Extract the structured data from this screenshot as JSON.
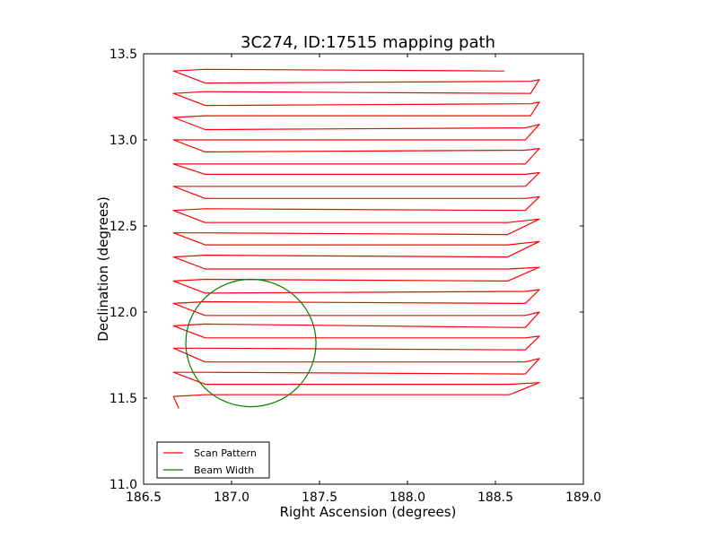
{
  "chart_data": {
    "type": "line",
    "title": "3C274, ID:17515 mapping path",
    "xlabel": "Right Ascension (degrees)",
    "ylabel": "Declination (degrees)",
    "xlim": [
      186.5,
      189.0
    ],
    "ylim": [
      11.0,
      13.5
    ],
    "xticks": [
      "186.5",
      "187.0",
      "187.5",
      "188.0",
      "188.5",
      "189.0"
    ],
    "yticks": [
      "11.0",
      "11.5",
      "12.0",
      "12.5",
      "13.0",
      "13.5"
    ],
    "grid": false,
    "legend_position": "lower-left",
    "colors": {
      "scan": "#ff0000",
      "beam": "#008000"
    },
    "series": [
      {
        "name": "Scan Pattern",
        "x": [
          188.55,
          186.85,
          186.67,
          186.85,
          188.7,
          188.75,
          188.7,
          186.85,
          186.67,
          186.85,
          188.7,
          188.75,
          188.7,
          186.85,
          186.67,
          186.85,
          188.67,
          188.75,
          188.67,
          186.85,
          186.67,
          186.85,
          188.67,
          188.75,
          188.67,
          186.85,
          186.67,
          186.85,
          188.67,
          188.75,
          188.67,
          186.85,
          186.67,
          186.85,
          188.67,
          188.75,
          188.67,
          186.85,
          186.67,
          186.85,
          188.57,
          188.75,
          188.57,
          186.85,
          186.67,
          186.85,
          188.57,
          188.75,
          188.57,
          186.85,
          186.67,
          186.85,
          188.57,
          188.75,
          188.57,
          186.85,
          186.67,
          186.85,
          188.67,
          188.75,
          188.67,
          186.85,
          186.67,
          186.85,
          188.67,
          188.75,
          188.67,
          186.85,
          186.67,
          186.85,
          188.67,
          188.75,
          188.67,
          186.85,
          186.67,
          186.85,
          188.67,
          188.75,
          188.67,
          186.85,
          186.67,
          186.85,
          188.58,
          188.75,
          188.58,
          186.85,
          186.67,
          186.7
        ],
        "y": [
          13.4,
          13.41,
          13.4,
          13.33,
          13.34,
          13.35,
          13.27,
          13.28,
          13.27,
          13.2,
          13.21,
          13.22,
          13.14,
          13.14,
          13.13,
          13.06,
          13.07,
          13.09,
          13.0,
          13.0,
          13.0,
          12.93,
          12.94,
          12.95,
          12.86,
          12.86,
          12.86,
          12.8,
          12.8,
          12.81,
          12.73,
          12.73,
          12.73,
          12.66,
          12.66,
          12.67,
          12.59,
          12.6,
          12.59,
          12.52,
          12.52,
          12.54,
          12.45,
          12.46,
          12.46,
          12.39,
          12.39,
          12.41,
          12.32,
          12.33,
          12.32,
          12.25,
          12.25,
          12.26,
          12.18,
          12.19,
          12.18,
          12.11,
          12.12,
          12.13,
          12.05,
          12.06,
          12.05,
          11.98,
          11.98,
          12.0,
          11.91,
          11.93,
          11.92,
          11.85,
          11.85,
          11.86,
          11.78,
          11.79,
          11.79,
          11.71,
          11.71,
          11.73,
          11.64,
          11.65,
          11.65,
          11.58,
          11.58,
          11.59,
          11.52,
          11.52,
          11.51,
          11.44
        ]
      },
      {
        "name": "Beam Width",
        "shape": "circle",
        "center": [
          187.11,
          11.82
        ],
        "radius": 0.37
      }
    ]
  }
}
